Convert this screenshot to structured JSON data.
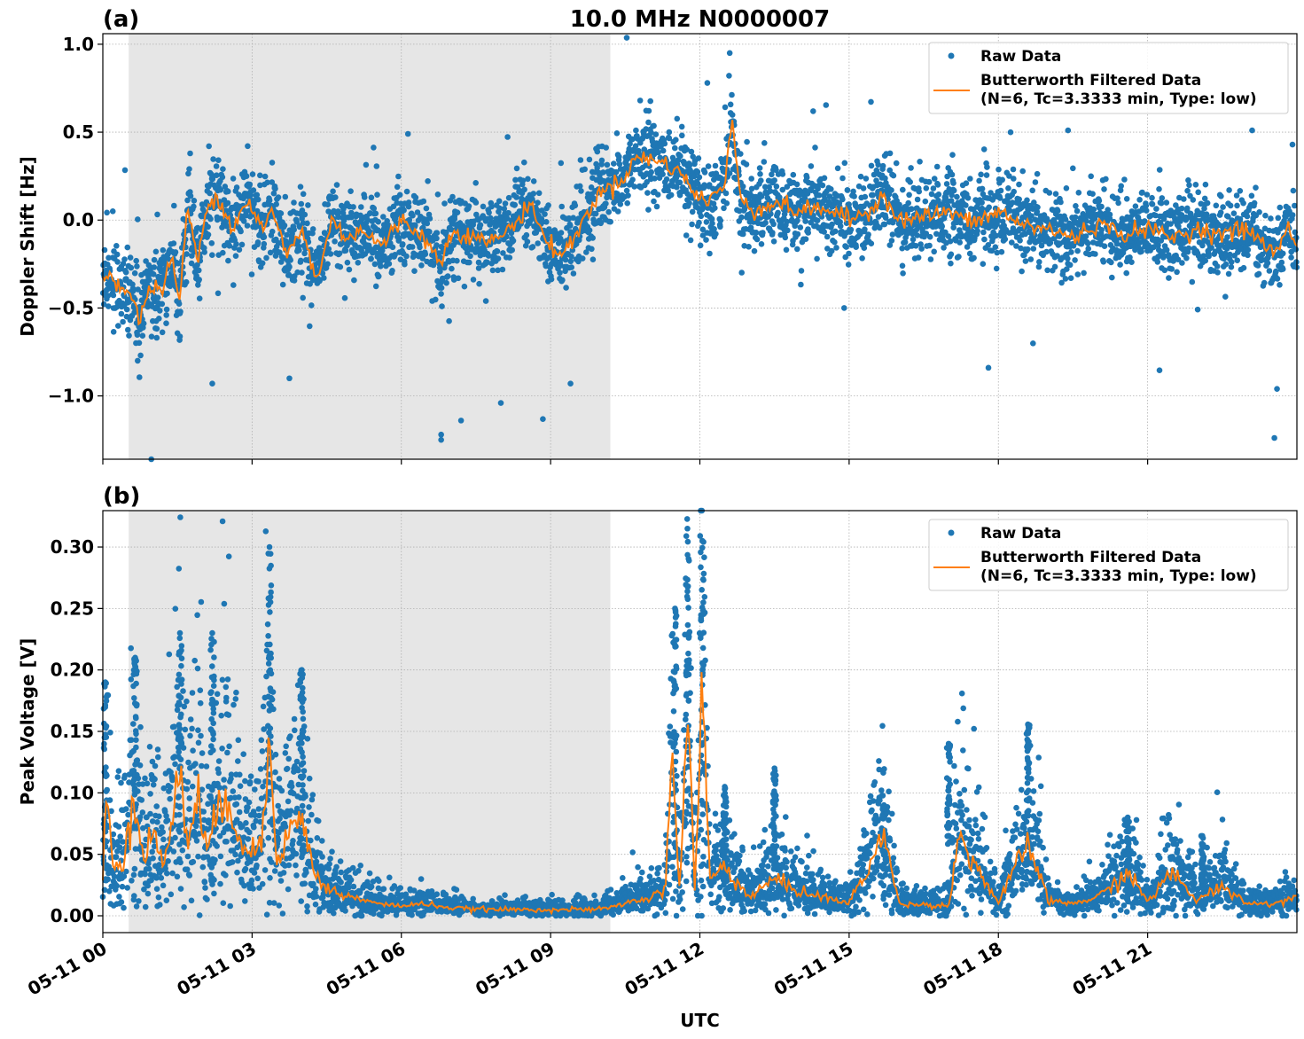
{
  "figure": {
    "suptitle": "10.0 MHz N0000007",
    "xlabel": "UTC"
  },
  "chart_data": [
    {
      "type": "scatter",
      "panel_label": "(a)",
      "title": "10.0 MHz N0000007",
      "xlabel": "",
      "ylabel": "Doppler Shift [Hz]",
      "x_unit": "hours since 05-11 00 UTC",
      "xlim": [
        0,
        24
      ],
      "ylim": [
        -1.36,
        1.06
      ],
      "yticks": [
        -1.0,
        -0.5,
        0.0,
        0.5,
        1.0
      ],
      "ytick_labels": [
        "−1.0",
        "−0.5",
        "0.0",
        "0.5",
        "1.0"
      ],
      "xticks": [
        0,
        3,
        6,
        9,
        12,
        15,
        18,
        21
      ],
      "xtick_labels": [
        "05-11 00",
        "05-11 03",
        "05-11 06",
        "05-11 09",
        "05-11 12",
        "05-11 15",
        "05-11 18",
        "05-11 21"
      ],
      "grid": true,
      "shaded_span_hours": [
        0.52,
        10.2
      ],
      "legend": {
        "placement": "upper-right",
        "entries": [
          "Raw Data",
          "Butterworth Filtered Data\n(N=6, Tc=3.3333 min, Type: low)"
        ]
      },
      "series": [
        {
          "name": "Raw Data",
          "kind": "scatter",
          "color": "#1f77b4",
          "spread_hz": 0.2,
          "notable_points": [
            [
              0.2,
              0.05
            ],
            [
              0.7,
              -0.8
            ],
            [
              2.2,
              -0.93
            ],
            [
              3.75,
              -0.9
            ],
            [
              6.8,
              -1.25
            ],
            [
              6.8,
              -1.22
            ],
            [
              7.2,
              -1.14
            ],
            [
              8.0,
              -1.04
            ],
            [
              9.4,
              -0.93
            ],
            [
              12.6,
              0.95
            ],
            [
              12.15,
              0.78
            ],
            [
              10.8,
              0.68
            ],
            [
              23.6,
              -0.96
            ],
            [
              23.1,
              0.51
            ],
            [
              19.4,
              0.51
            ],
            [
              17.8,
              -0.84
            ],
            [
              14.9,
              -0.5
            ]
          ]
        },
        {
          "name": "Butterworth Filtered Data (N=6, Tc=3.3333 min, Type: low)",
          "kind": "line",
          "color": "#ff7f0e",
          "x": [
            0,
            0.3,
            0.6,
            0.75,
            0.9,
            1.2,
            1.4,
            1.55,
            1.7,
            1.9,
            2.1,
            2.3,
            2.6,
            2.9,
            3.2,
            3.4,
            3.7,
            4.0,
            4.3,
            4.6,
            4.9,
            5.2,
            5.6,
            6.0,
            6.4,
            6.8,
            7.0,
            7.4,
            7.8,
            8.2,
            8.6,
            8.9,
            9.2,
            9.5,
            9.8,
            10.1,
            10.4,
            10.7,
            11.0,
            11.3,
            11.6,
            11.9,
            12.2,
            12.5,
            12.65,
            12.8,
            13.1,
            13.5,
            14.0,
            14.5,
            15.0,
            15.4,
            15.7,
            16.0,
            16.5,
            17.0,
            17.5,
            18.0,
            18.5,
            19.0,
            19.5,
            20.0,
            20.5,
            21.0,
            21.5,
            22.0,
            22.5,
            23.0,
            23.4,
            23.6,
            23.8,
            24.0
          ],
          "y": [
            -0.3,
            -0.35,
            -0.45,
            -0.58,
            -0.4,
            -0.38,
            -0.22,
            -0.48,
            0.1,
            -0.25,
            0.08,
            0.15,
            -0.05,
            0.12,
            -0.05,
            0.05,
            -0.2,
            -0.05,
            -0.35,
            0.0,
            -0.1,
            -0.05,
            -0.15,
            0.0,
            -0.08,
            -0.25,
            -0.05,
            -0.1,
            -0.12,
            -0.05,
            0.1,
            -0.12,
            -0.2,
            -0.1,
            0.08,
            0.18,
            0.22,
            0.35,
            0.35,
            0.32,
            0.28,
            0.14,
            0.12,
            0.2,
            0.57,
            0.15,
            0.05,
            0.1,
            0.05,
            0.07,
            0.0,
            0.05,
            0.15,
            0.0,
            0.02,
            0.05,
            -0.02,
            0.05,
            -0.03,
            -0.05,
            -0.1,
            -0.02,
            -0.08,
            -0.05,
            -0.1,
            -0.05,
            -0.08,
            -0.05,
            -0.15,
            -0.2,
            -0.02,
            -0.15
          ]
        }
      ]
    },
    {
      "type": "scatter",
      "panel_label": "(b)",
      "title": "",
      "xlabel": "UTC",
      "ylabel": "Peak Voltage [V]",
      "x_unit": "hours since 05-11 00 UTC",
      "xlim": [
        0,
        24
      ],
      "ylim": [
        -0.0137,
        0.3296
      ],
      "yticks": [
        0.0,
        0.05,
        0.1,
        0.15,
        0.2,
        0.25,
        0.3
      ],
      "ytick_labels": [
        "0.00",
        "0.05",
        "0.10",
        "0.15",
        "0.20",
        "0.25",
        "0.30"
      ],
      "xticks": [
        0,
        3,
        6,
        9,
        12,
        15,
        18,
        21
      ],
      "xtick_labels": [
        "05-11 00",
        "05-11 03",
        "05-11 06",
        "05-11 09",
        "05-11 12",
        "05-11 15",
        "05-11 18",
        "05-11 21"
      ],
      "grid": true,
      "shaded_span_hours": [
        0.52,
        10.2
      ],
      "legend": {
        "placement": "upper-right",
        "entries": [
          "Raw Data",
          "Butterworth Filtered Data\n(N=6, Tc=3.3333 min, Type: low)"
        ]
      },
      "series": [
        {
          "name": "Raw Data",
          "kind": "scatter",
          "color": "#1f77b4",
          "spikes": [
            [
              0.05,
              0.19
            ],
            [
              0.65,
              0.21
            ],
            [
              1.55,
              0.23
            ],
            [
              2.2,
              0.23
            ],
            [
              3.35,
              0.3
            ],
            [
              4.0,
              0.2
            ],
            [
              11.5,
              0.25
            ],
            [
              11.75,
              0.315
            ],
            [
              12.05,
              0.305
            ],
            [
              12.5,
              0.105
            ],
            [
              13.5,
              0.12
            ],
            [
              15.7,
              0.09
            ],
            [
              17.0,
              0.14
            ],
            [
              18.6,
              0.155
            ],
            [
              20.6,
              0.08
            ],
            [
              22.1,
              0.065
            ]
          ]
        },
        {
          "name": "Butterworth Filtered Data (N=6, Tc=3.3333 min, Type: low)",
          "kind": "line",
          "color": "#ff7f0e",
          "x": [
            0,
            0.05,
            0.2,
            0.4,
            0.6,
            0.85,
            1.0,
            1.2,
            1.4,
            1.55,
            1.7,
            1.9,
            2.1,
            2.3,
            2.5,
            2.8,
            3.0,
            3.2,
            3.35,
            3.5,
            3.8,
            4.0,
            4.3,
            4.6,
            5.0,
            5.5,
            6.0,
            6.5,
            7.0,
            8.0,
            9.0,
            10.0,
            10.5,
            11.0,
            11.3,
            11.45,
            11.6,
            11.75,
            11.9,
            12.05,
            12.2,
            12.5,
            13.0,
            13.5,
            14.0,
            14.5,
            15.0,
            15.7,
            16.0,
            17.0,
            17.2,
            18.0,
            18.6,
            19.0,
            19.5,
            20.0,
            20.6,
            21.0,
            21.5,
            22.0,
            22.5,
            23.0,
            23.5,
            24.0
          ],
          "y": [
            0.03,
            0.1,
            0.04,
            0.045,
            0.098,
            0.05,
            0.07,
            0.04,
            0.08,
            0.115,
            0.06,
            0.1,
            0.05,
            0.08,
            0.1,
            0.06,
            0.05,
            0.06,
            0.148,
            0.05,
            0.07,
            0.08,
            0.03,
            0.02,
            0.015,
            0.01,
            0.008,
            0.01,
            0.006,
            0.005,
            0.005,
            0.005,
            0.01,
            0.015,
            0.02,
            0.125,
            0.02,
            0.175,
            0.02,
            0.186,
            0.03,
            0.04,
            0.015,
            0.03,
            0.02,
            0.015,
            0.01,
            0.065,
            0.01,
            0.008,
            0.065,
            0.01,
            0.06,
            0.012,
            0.01,
            0.015,
            0.035,
            0.012,
            0.035,
            0.012,
            0.025,
            0.01,
            0.01,
            0.015
          ]
        }
      ]
    }
  ]
}
